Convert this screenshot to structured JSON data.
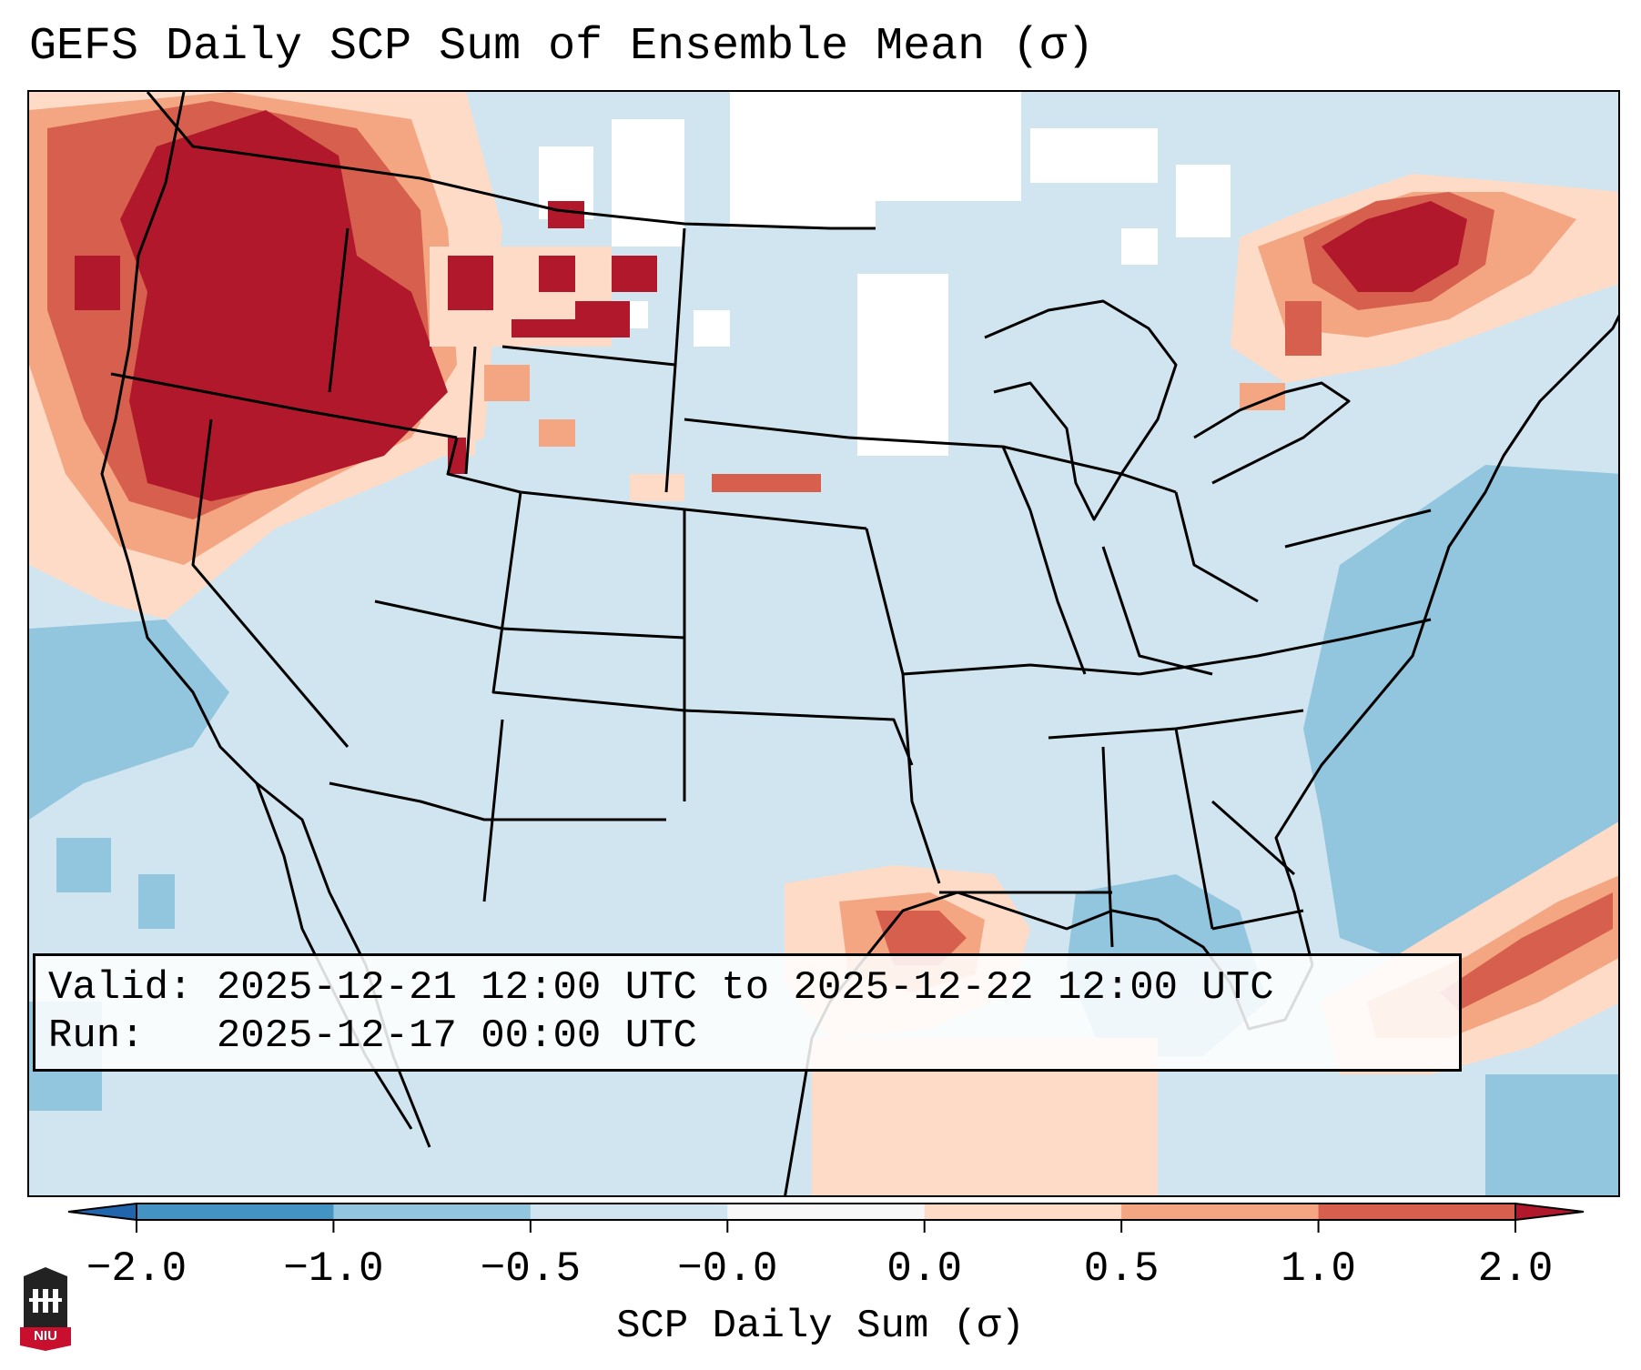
{
  "title": "GEFS Daily SCP Sum of Ensemble Mean (σ)",
  "info": {
    "valid_line": "Valid: 2025-12-21 12:00 UTC to 2025-12-22 12:00 UTC",
    "run_line": "Run:   2025-12-17 00:00 UTC"
  },
  "colorbar": {
    "label": "SCP Daily Sum (σ)",
    "ticks": [
      "−2.0",
      "−1.0",
      "−0.5",
      "−0.0",
      "0.0",
      "0.5",
      "1.0",
      "2.0"
    ],
    "colors": [
      "#4393c3",
      "#92c5de",
      "#d1e5f0",
      "#f7f7f7",
      "#fddbc7",
      "#f4a582",
      "#d6604d"
    ],
    "under_color": "#2166ac",
    "over_color": "#b2182b"
  },
  "map": {
    "background_color": "#d1e5f0",
    "land_line_color": "#000000",
    "regions": [
      {
        "name": "pacific-northwest-high",
        "level": "very-high"
      },
      {
        "name": "northern-rockies-high",
        "level": "high"
      },
      {
        "name": "new-england-high",
        "level": "very-high"
      },
      {
        "name": "gulf-coast-moderate",
        "level": "moderate"
      },
      {
        "name": "atlantic-low",
        "level": "low"
      },
      {
        "name": "northern-plains-neutral",
        "level": "neutral"
      }
    ]
  },
  "logo": {
    "text": "NIU"
  }
}
